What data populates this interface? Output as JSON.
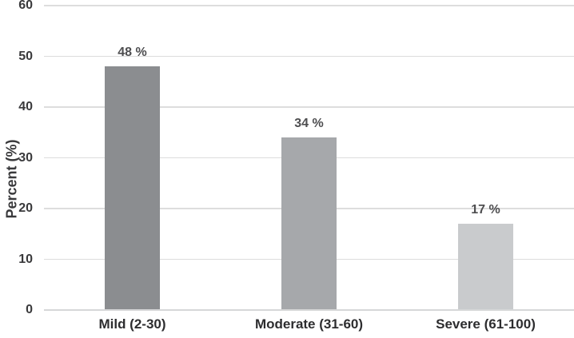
{
  "chart_data": {
    "type": "bar",
    "title": "",
    "categories": [
      "Mild (2-30)",
      "Moderate (31-60)",
      "Severe (61-100)"
    ],
    "values": [
      48,
      34,
      17
    ],
    "bar_labels": [
      "48 %",
      "34 %",
      "17 %"
    ],
    "xlabel": "",
    "ylabel": "Percent (%)",
    "ylim": [
      0,
      60
    ],
    "yticks": [
      0,
      10,
      20,
      30,
      40,
      50,
      60
    ],
    "grid": "horizontal",
    "legend_position": "none",
    "bar_colors": [
      "#8b8d90",
      "#a6a8ab",
      "#c9cbcd"
    ]
  },
  "colors": {
    "background": "#ffffff",
    "gridline": "#dddddd",
    "axis_line": "#d6d7d8",
    "tick_label": "#39393b",
    "value_label": "#4e4e50",
    "category_label": "#2d2d2f",
    "axis_title": "#3a3a3c"
  }
}
